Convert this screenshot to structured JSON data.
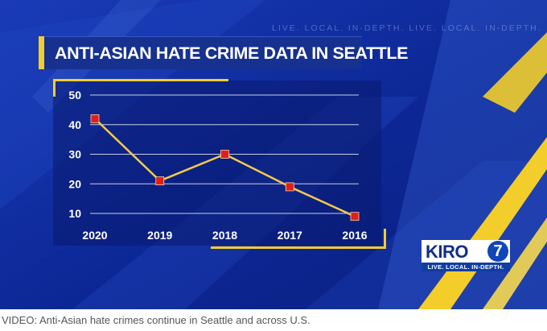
{
  "video": {
    "tagline_background": "LIVE. LOCAL. IN-DEPTH.  LIVE. LOCAL. IN-DEPTH.",
    "title": "ANTI-ASIAN HATE CRIME DATA IN SEATTLE",
    "logo": {
      "name": "KIRO",
      "channel": "7",
      "tagline": "LIVE. LOCAL. IN-DEPTH."
    }
  },
  "caption": "VIDEO: Anti-Asian hate crimes continue in Seattle and across U.S.",
  "colors": {
    "background_blue": "#0d2a9a",
    "accent_yellow": "#f3cd2a",
    "line": "#f2c94c",
    "marker": "#e01e1e"
  },
  "chart_data": {
    "type": "line",
    "title": "ANTI-ASIAN HATE CRIME DATA IN SEATTLE",
    "xlabel": "",
    "ylabel": "",
    "categories": [
      "2020",
      "2019",
      "2018",
      "2017",
      "2016"
    ],
    "series": [
      {
        "values": [
          42,
          21,
          30,
          19,
          9
        ]
      }
    ],
    "ylim": [
      5,
      50
    ],
    "yticks": [
      "10",
      "20",
      "30",
      "40",
      "50"
    ],
    "grid": true,
    "legend": "none"
  }
}
